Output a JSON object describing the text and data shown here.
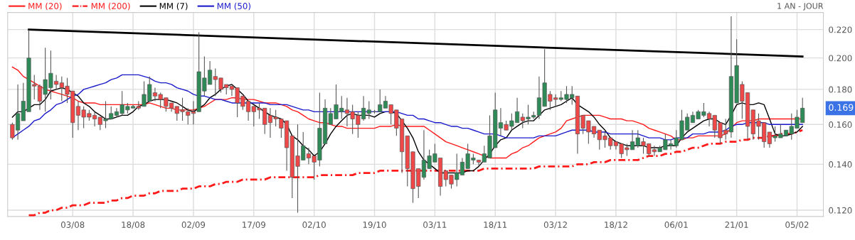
{
  "chart_data": {
    "type": "candlestick",
    "categories": [
      null,
      null,
      null,
      null,
      null,
      null,
      null,
      null,
      null,
      null,
      null,
      "03/08",
      null,
      null,
      null,
      null,
      null,
      null,
      null,
      null,
      null,
      null,
      "18/08",
      null,
      null,
      null,
      null,
      null,
      null,
      null,
      null,
      null,
      null,
      "02/09",
      null,
      null,
      null,
      null,
      null,
      null,
      null,
      null,
      null,
      null,
      "17/09",
      null,
      null,
      null,
      null,
      null,
      null,
      null,
      null,
      null,
      null,
      "02/10",
      null,
      null,
      null,
      null,
      null,
      null,
      null,
      null,
      null,
      null,
      "19/10",
      null,
      null,
      null,
      null,
      null,
      null,
      null,
      null,
      null,
      null,
      "03/11",
      null,
      null,
      null,
      null,
      null,
      null,
      null,
      null,
      null,
      null,
      "18/11",
      null,
      null,
      null,
      null,
      null,
      null,
      null,
      null,
      null,
      null,
      "03/12",
      null,
      null,
      null,
      null,
      null,
      null,
      null,
      null,
      null,
      null,
      "18/12",
      null,
      null,
      null,
      null,
      null,
      null,
      null,
      null,
      null,
      null,
      "06/01",
      null,
      null,
      null,
      null,
      null,
      null,
      null,
      null,
      null,
      null,
      "21/01",
      null,
      null,
      null,
      null,
      null,
      null,
      null,
      null,
      null,
      null,
      "05/02",
      null
    ],
    "ohlc": [
      [
        0.16,
        0.161,
        0.152,
        0.153
      ],
      [
        0.157,
        0.183,
        0.152,
        0.166
      ],
      [
        0.162,
        0.184,
        0.162,
        0.173
      ],
      [
        0.167,
        0.22,
        0.167,
        0.2
      ],
      [
        0.183,
        0.189,
        0.174,
        0.182
      ],
      [
        0.182,
        0.183,
        0.168,
        0.173
      ],
      [
        0.177,
        0.207,
        0.167,
        0.186
      ],
      [
        0.181,
        0.205,
        0.174,
        0.19
      ],
      [
        0.185,
        0.189,
        0.18,
        0.183
      ],
      [
        0.184,
        0.188,
        0.173,
        0.181
      ],
      [
        0.182,
        0.187,
        0.172,
        0.177
      ],
      [
        0.179,
        0.179,
        0.153,
        0.161
      ],
      [
        0.17,
        0.173,
        0.157,
        0.165
      ],
      [
        0.168,
        0.17,
        0.158,
        0.164
      ],
      [
        0.166,
        0.168,
        0.162,
        0.164
      ],
      [
        0.165,
        0.167,
        0.159,
        0.163
      ],
      [
        0.164,
        0.164,
        0.157,
        0.16
      ],
      [
        0.162,
        0.173,
        0.158,
        0.163
      ],
      [
        0.163,
        0.17,
        0.163,
        0.166
      ],
      [
        0.165,
        0.169,
        0.164,
        0.167
      ],
      [
        0.166,
        0.179,
        0.165,
        0.171
      ],
      [
        0.168,
        0.172,
        0.166,
        0.17
      ],
      [
        0.169,
        0.171,
        0.169,
        0.17
      ],
      [
        0.17,
        0.173,
        0.168,
        0.169
      ],
      [
        0.17,
        0.185,
        0.17,
        0.177
      ],
      [
        0.173,
        0.188,
        0.173,
        0.183
      ],
      [
        0.178,
        0.181,
        0.173,
        0.176
      ],
      [
        0.177,
        0.178,
        0.169,
        0.174
      ],
      [
        0.175,
        0.175,
        0.167,
        0.17
      ],
      [
        0.172,
        0.172,
        0.167,
        0.169
      ],
      [
        0.17,
        0.17,
        0.162,
        0.166
      ],
      [
        0.168,
        0.175,
        0.162,
        0.167
      ],
      [
        0.167,
        0.169,
        0.16,
        0.165
      ],
      [
        0.167,
        0.173,
        0.16,
        0.166
      ],
      [
        0.167,
        0.218,
        0.167,
        0.191
      ],
      [
        0.179,
        0.201,
        0.176,
        0.187
      ],
      [
        0.183,
        0.198,
        0.183,
        0.192
      ],
      [
        0.188,
        0.193,
        0.176,
        0.186
      ],
      [
        0.187,
        0.187,
        0.178,
        0.18
      ],
      [
        0.183,
        0.183,
        0.177,
        0.181
      ],
      [
        0.182,
        0.182,
        0.176,
        0.18
      ],
      [
        0.181,
        0.181,
        0.164,
        0.172
      ],
      [
        0.176,
        0.176,
        0.168,
        0.17
      ],
      [
        0.173,
        0.173,
        0.162,
        0.167
      ],
      [
        0.17,
        0.17,
        0.159,
        0.167
      ],
      [
        0.169,
        0.172,
        0.163,
        0.168
      ],
      [
        0.169,
        0.169,
        0.155,
        0.16
      ],
      [
        0.165,
        0.169,
        0.153,
        0.161
      ],
      [
        0.164,
        0.168,
        0.159,
        0.163
      ],
      [
        0.163,
        0.163,
        0.153,
        0.158
      ],
      [
        0.162,
        0.162,
        0.137,
        0.148
      ],
      [
        0.154,
        0.154,
        0.125,
        0.134
      ],
      [
        0.144,
        0.16,
        0.119,
        0.139
      ],
      [
        0.142,
        0.156,
        0.142,
        0.149
      ],
      [
        0.145,
        0.148,
        0.14,
        0.143
      ],
      [
        0.144,
        0.144,
        0.133,
        0.141
      ],
      [
        0.142,
        0.178,
        0.139,
        0.158
      ],
      [
        0.15,
        0.174,
        0.15,
        0.169
      ],
      [
        0.16,
        0.169,
        0.16,
        0.166
      ],
      [
        0.163,
        0.183,
        0.163,
        0.171
      ],
      [
        0.167,
        0.176,
        0.163,
        0.169
      ],
      [
        0.168,
        0.175,
        0.159,
        0.166
      ],
      [
        0.167,
        0.171,
        0.155,
        0.163
      ],
      [
        0.165,
        0.167,
        0.153,
        0.16
      ],
      [
        0.163,
        0.176,
        0.162,
        0.169
      ],
      [
        0.166,
        0.173,
        0.163,
        0.168
      ],
      [
        0.167,
        0.168,
        0.166,
        0.167
      ],
      [
        0.167,
        0.18,
        0.167,
        0.171
      ],
      [
        0.169,
        0.176,
        0.169,
        0.173
      ],
      [
        0.171,
        0.171,
        0.16,
        0.166
      ],
      [
        0.168,
        0.168,
        0.154,
        0.158
      ],
      [
        0.163,
        0.163,
        0.136,
        0.146
      ],
      [
        0.154,
        0.154,
        0.13,
        0.138
      ],
      [
        0.146,
        0.146,
        0.123,
        0.129
      ],
      [
        0.138,
        0.138,
        0.125,
        0.13
      ],
      [
        0.134,
        0.157,
        0.133,
        0.142
      ],
      [
        0.138,
        0.147,
        0.138,
        0.144
      ],
      [
        0.141,
        0.15,
        0.141,
        0.145
      ],
      [
        0.143,
        0.143,
        0.126,
        0.13
      ],
      [
        0.137,
        0.137,
        0.13,
        0.133
      ],
      [
        0.135,
        0.135,
        0.129,
        0.131
      ],
      [
        0.133,
        0.145,
        0.13,
        0.136
      ],
      [
        0.135,
        0.143,
        0.135,
        0.141
      ],
      [
        0.138,
        0.15,
        0.138,
        0.145
      ],
      [
        0.142,
        0.145,
        0.14,
        0.143
      ],
      [
        0.142,
        0.142,
        0.139,
        0.141
      ],
      [
        0.141,
        0.149,
        0.141,
        0.145
      ],
      [
        0.143,
        0.165,
        0.143,
        0.154
      ],
      [
        0.148,
        0.178,
        0.148,
        0.168
      ],
      [
        0.158,
        0.169,
        0.154,
        0.161
      ],
      [
        0.16,
        0.162,
        0.157,
        0.157
      ],
      [
        0.159,
        0.166,
        0.157,
        0.162
      ],
      [
        0.161,
        0.175,
        0.161,
        0.167
      ],
      [
        0.164,
        0.166,
        0.158,
        0.162
      ],
      [
        0.163,
        0.171,
        0.16,
        0.164
      ],
      [
        0.164,
        0.167,
        0.163,
        0.165
      ],
      [
        0.165,
        0.188,
        0.163,
        0.175
      ],
      [
        0.17,
        0.206,
        0.17,
        0.184
      ],
      [
        0.177,
        0.179,
        0.168,
        0.173
      ],
      [
        0.175,
        0.177,
        0.17,
        0.174
      ],
      [
        0.174,
        0.179,
        0.173,
        0.175
      ],
      [
        0.174,
        0.182,
        0.172,
        0.177
      ],
      [
        0.175,
        0.182,
        0.171,
        0.177
      ],
      [
        0.176,
        0.176,
        0.145,
        0.155
      ],
      [
        0.165,
        0.165,
        0.155,
        0.158
      ],
      [
        0.162,
        0.162,
        0.15,
        0.156
      ],
      [
        0.159,
        0.159,
        0.153,
        0.155
      ],
      [
        0.157,
        0.157,
        0.147,
        0.152
      ],
      [
        0.154,
        0.157,
        0.148,
        0.152
      ],
      [
        0.153,
        0.153,
        0.147,
        0.149
      ],
      [
        0.151,
        0.151,
        0.147,
        0.149
      ],
      [
        0.15,
        0.15,
        0.143,
        0.145
      ],
      [
        0.148,
        0.15,
        0.144,
        0.147
      ],
      [
        0.147,
        0.157,
        0.147,
        0.151
      ],
      [
        0.149,
        0.157,
        0.148,
        0.153
      ],
      [
        0.151,
        0.153,
        0.145,
        0.149
      ],
      [
        0.15,
        0.15,
        0.144,
        0.145
      ],
      [
        0.147,
        0.149,
        0.144,
        0.146
      ],
      [
        0.146,
        0.149,
        0.146,
        0.148
      ],
      [
        0.147,
        0.155,
        0.147,
        0.152
      ],
      [
        0.149,
        0.152,
        0.147,
        0.15
      ],
      [
        0.149,
        0.157,
        0.148,
        0.153
      ],
      [
        0.152,
        0.168,
        0.152,
        0.162
      ],
      [
        0.157,
        0.166,
        0.157,
        0.164
      ],
      [
        0.161,
        0.167,
        0.161,
        0.165
      ],
      [
        0.163,
        0.168,
        0.163,
        0.167
      ],
      [
        0.165,
        0.172,
        0.164,
        0.167
      ],
      [
        0.166,
        0.167,
        0.159,
        0.163
      ],
      [
        0.165,
        0.165,
        0.153,
        0.157
      ],
      [
        0.161,
        0.161,
        0.15,
        0.153
      ],
      [
        0.157,
        0.163,
        0.152,
        0.155
      ],
      [
        0.156,
        0.23,
        0.153,
        0.188
      ],
      [
        0.172,
        0.213,
        0.172,
        0.195
      ],
      [
        0.183,
        0.185,
        0.163,
        0.173
      ],
      [
        0.178,
        0.178,
        0.152,
        0.159
      ],
      [
        0.168,
        0.168,
        0.152,
        0.155
      ],
      [
        0.162,
        0.166,
        0.152,
        0.159
      ],
      [
        0.161,
        0.161,
        0.148,
        0.151
      ],
      [
        0.156,
        0.156,
        0.148,
        0.15
      ],
      [
        0.153,
        0.159,
        0.151,
        0.154
      ],
      [
        0.153,
        0.16,
        0.153,
        0.155
      ],
      [
        0.154,
        0.157,
        0.154,
        0.157
      ],
      [
        0.155,
        0.166,
        0.152,
        0.159
      ],
      [
        0.158,
        0.168,
        0.158,
        0.164
      ],
      [
        0.161,
        0.175,
        0.161,
        0.169
      ]
    ],
    "series": [
      {
        "name": "MM (20)",
        "type": "line",
        "color": "#ff1a1a",
        "line_style": "solid",
        "values": [
          0.194,
          0.192,
          0.188,
          0.186,
          0.184,
          0.182,
          0.18,
          0.179,
          0.178,
          0.177,
          0.176,
          0.175,
          0.173,
          0.172,
          0.172,
          0.172,
          0.171,
          0.171,
          0.171,
          0.171,
          0.171,
          0.171,
          0.171,
          0.171,
          0.171,
          0.172,
          0.171,
          0.17,
          0.169,
          0.169,
          0.168,
          0.168,
          0.168,
          0.168,
          0.169,
          0.17,
          0.172,
          0.174,
          0.174,
          0.174,
          0.175,
          0.175,
          0.174,
          0.174,
          0.174,
          0.173,
          0.172,
          0.172,
          0.172,
          0.171,
          0.17,
          0.168,
          0.167,
          0.165,
          0.163,
          0.162,
          0.161,
          0.161,
          0.16,
          0.159,
          0.159,
          0.158,
          0.158,
          0.158,
          0.158,
          0.158,
          0.158,
          0.159,
          0.159,
          0.159,
          0.16,
          0.159,
          0.159,
          0.159,
          0.159,
          0.159,
          0.157,
          0.155,
          0.153,
          0.151,
          0.15,
          0.149,
          0.148,
          0.147,
          0.146,
          0.145,
          0.144,
          0.143,
          0.143,
          0.143,
          0.143,
          0.145,
          0.146,
          0.148,
          0.149,
          0.151,
          0.153,
          0.154,
          0.155,
          0.156,
          0.158,
          0.162,
          0.163,
          0.164,
          0.165,
          0.165,
          0.165,
          0.165,
          0.164,
          0.163,
          0.163,
          0.163,
          0.162,
          0.162,
          0.161,
          0.16,
          0.158,
          0.157,
          0.156,
          0.155,
          0.154,
          0.152,
          0.152,
          0.153,
          0.153,
          0.154,
          0.154,
          0.154,
          0.154,
          0.154,
          0.155,
          0.158,
          0.161,
          0.162,
          0.162,
          0.162,
          0.163,
          0.163,
          0.163,
          0.163,
          0.163,
          0.163,
          0.163,
          0.163,
          0.163
        ]
      },
      {
        "name": "MM (200)",
        "type": "line",
        "color": "#ff1a1a",
        "line_style": "dashdot",
        "values": [
          null,
          null,
          null,
          0.118,
          0.118,
          0.119,
          0.119,
          0.12,
          0.12,
          0.121,
          0.121,
          0.122,
          0.122,
          0.122,
          0.123,
          0.123,
          0.123,
          0.123,
          0.124,
          0.124,
          0.125,
          0.125,
          0.126,
          0.126,
          0.126,
          0.127,
          0.127,
          0.128,
          0.128,
          0.128,
          0.128,
          0.129,
          0.129,
          0.129,
          0.13,
          0.13,
          0.13,
          0.131,
          0.131,
          0.132,
          0.132,
          0.132,
          0.133,
          0.133,
          0.133,
          0.133,
          0.133,
          0.134,
          0.134,
          0.134,
          0.134,
          0.134,
          0.134,
          0.134,
          0.134,
          0.134,
          0.135,
          0.135,
          0.135,
          0.135,
          0.135,
          0.135,
          0.135,
          0.136,
          0.136,
          0.136,
          0.136,
          0.137,
          0.137,
          0.137,
          0.137,
          0.137,
          0.137,
          0.137,
          0.137,
          0.137,
          0.137,
          0.137,
          0.137,
          0.137,
          0.137,
          0.137,
          0.137,
          0.137,
          0.137,
          0.137,
          0.138,
          0.138,
          0.138,
          0.138,
          0.138,
          0.138,
          0.138,
          0.138,
          0.138,
          0.138,
          0.139,
          0.139,
          0.139,
          0.139,
          0.139,
          0.139,
          0.139,
          0.14,
          0.14,
          0.14,
          0.141,
          0.141,
          0.141,
          0.142,
          0.142,
          0.142,
          0.142,
          0.142,
          0.142,
          0.143,
          0.144,
          0.144,
          0.144,
          0.145,
          0.145,
          0.146,
          0.146,
          0.147,
          0.148,
          0.148,
          0.149,
          0.15,
          0.15,
          0.15,
          0.151,
          0.151,
          0.151,
          0.152,
          0.152,
          0.153,
          0.153,
          0.153,
          0.154,
          0.154,
          0.155,
          0.155,
          0.155,
          0.156,
          0.157
        ]
      },
      {
        "name": "MM (7)",
        "type": "line",
        "color": "#000000",
        "line_style": "solid",
        "values": [
          0.164,
          0.167,
          0.167,
          0.169,
          0.171,
          0.171,
          0.174,
          0.179,
          0.18,
          0.181,
          0.18,
          0.178,
          0.176,
          0.172,
          0.17,
          0.167,
          0.165,
          0.163,
          0.163,
          0.164,
          0.165,
          0.165,
          0.167,
          0.17,
          0.171,
          0.173,
          0.174,
          0.174,
          0.174,
          0.173,
          0.172,
          0.17,
          0.168,
          0.167,
          0.169,
          0.171,
          0.175,
          0.177,
          0.18,
          0.182,
          0.183,
          0.18,
          0.177,
          0.173,
          0.171,
          0.169,
          0.167,
          0.165,
          0.164,
          0.163,
          0.16,
          0.154,
          0.152,
          0.149,
          0.147,
          0.144,
          0.146,
          0.15,
          0.155,
          0.159,
          0.162,
          0.165,
          0.166,
          0.165,
          0.165,
          0.165,
          0.164,
          0.166,
          0.167,
          0.167,
          0.166,
          0.162,
          0.158,
          0.153,
          0.146,
          0.142,
          0.14,
          0.138,
          0.136,
          0.136,
          0.136,
          0.136,
          0.136,
          0.137,
          0.137,
          0.139,
          0.142,
          0.145,
          0.149,
          0.152,
          0.153,
          0.157,
          0.159,
          0.161,
          0.162,
          0.162,
          0.165,
          0.168,
          0.169,
          0.17,
          0.171,
          0.173,
          0.175,
          0.171,
          0.169,
          0.167,
          0.164,
          0.16,
          0.157,
          0.153,
          0.151,
          0.15,
          0.149,
          0.149,
          0.149,
          0.149,
          0.148,
          0.148,
          0.148,
          0.149,
          0.149,
          0.149,
          0.153,
          0.156,
          0.158,
          0.16,
          0.162,
          0.163,
          0.163,
          0.161,
          0.16,
          0.165,
          0.171,
          0.172,
          0.171,
          0.171,
          0.172,
          0.171,
          0.163,
          0.155,
          0.154,
          0.154,
          0.155,
          0.156,
          0.159
        ]
      },
      {
        "name": "MM (50)",
        "type": "line",
        "color": "#1a1acc",
        "line_style": "solid",
        "values": [
          0.153,
          0.155,
          0.157,
          0.159,
          0.162,
          0.163,
          0.166,
          0.168,
          0.171,
          0.172,
          0.174,
          0.176,
          0.177,
          0.18,
          0.181,
          0.182,
          0.183,
          0.184,
          0.186,
          0.187,
          0.189,
          0.189,
          0.189,
          0.189,
          0.188,
          0.187,
          0.185,
          0.184,
          0.184,
          0.183,
          0.181,
          0.18,
          0.179,
          0.177,
          0.176,
          0.176,
          0.175,
          0.174,
          0.174,
          0.173,
          0.172,
          0.172,
          0.172,
          0.172,
          0.172,
          0.172,
          0.172,
          0.171,
          0.171,
          0.171,
          0.171,
          0.17,
          0.169,
          0.168,
          0.168,
          0.167,
          0.167,
          0.167,
          0.167,
          0.167,
          0.167,
          0.167,
          0.167,
          0.167,
          0.167,
          0.167,
          0.167,
          0.167,
          0.167,
          0.167,
          0.167,
          0.166,
          0.165,
          0.165,
          0.163,
          0.163,
          0.162,
          0.161,
          0.161,
          0.16,
          0.159,
          0.159,
          0.158,
          0.158,
          0.157,
          0.156,
          0.155,
          0.155,
          0.155,
          0.154,
          0.153,
          0.153,
          0.153,
          0.153,
          0.153,
          0.153,
          0.154,
          0.154,
          0.154,
          0.154,
          0.155,
          0.156,
          0.157,
          0.157,
          0.157,
          0.157,
          0.156,
          0.156,
          0.156,
          0.155,
          0.155,
          0.155,
          0.155,
          0.155,
          0.155,
          0.154,
          0.153,
          0.153,
          0.153,
          0.152,
          0.152,
          0.153,
          0.153,
          0.153,
          0.155,
          0.155,
          0.155,
          0.156,
          0.156,
          0.156,
          0.157,
          0.159,
          0.16,
          0.16,
          0.161,
          0.161,
          0.161,
          0.161,
          0.16,
          0.16,
          0.16,
          0.16,
          0.16,
          0.16,
          0.16
        ]
      },
      {
        "type": "line",
        "color": "#000000",
        "line_style": "solid",
        "values": [
          null,
          null,
          null,
          0.22,
          null,
          null,
          null,
          null,
          null,
          null,
          null,
          null,
          null,
          null,
          null,
          null,
          null,
          null,
          null,
          null,
          null,
          null,
          null,
          null,
          null,
          null,
          null,
          null,
          null,
          null,
          null,
          null,
          null,
          null,
          null,
          null,
          null,
          null,
          null,
          null,
          null,
          null,
          null,
          null,
          null,
          null,
          null,
          null,
          null,
          null,
          null,
          null,
          null,
          null,
          null,
          null,
          null,
          null,
          null,
          null,
          null,
          null,
          null,
          null,
          null,
          null,
          null,
          null,
          null,
          null,
          null,
          null,
          null,
          null,
          null,
          null,
          null,
          null,
          null,
          null,
          null,
          null,
          null,
          null,
          null,
          null,
          null,
          null,
          null,
          null,
          null,
          null,
          null,
          null,
          null,
          null,
          null,
          null,
          null,
          null,
          null,
          null,
          null,
          null,
          null,
          null,
          null,
          null,
          null,
          null,
          null,
          null,
          null,
          null,
          null,
          null,
          null,
          null,
          null,
          null,
          null,
          null,
          null,
          null,
          null,
          null,
          null,
          null,
          null,
          null,
          null,
          null,
          null,
          null,
          null,
          null,
          null,
          null,
          null,
          null,
          null,
          null,
          null,
          null,
          0.201
        ]
      }
    ],
    "ylim": [
      0.1175,
      0.233
    ],
    "yticks": [
      {
        "value": 0.12,
        "label": "0.120"
      },
      {
        "value": 0.14,
        "label": "0.140"
      },
      {
        "value": 0.16,
        "label": "0.160"
      },
      {
        "value": 0.18,
        "label": "0.180"
      },
      {
        "value": 0.2,
        "label": "0.200"
      },
      {
        "value": 0.22,
        "label": "0.220"
      }
    ],
    "log": "y",
    "grid": true,
    "legend": "top left",
    "annotations": [
      "1 AN - JOUR",
      "0.169"
    ]
  }
}
